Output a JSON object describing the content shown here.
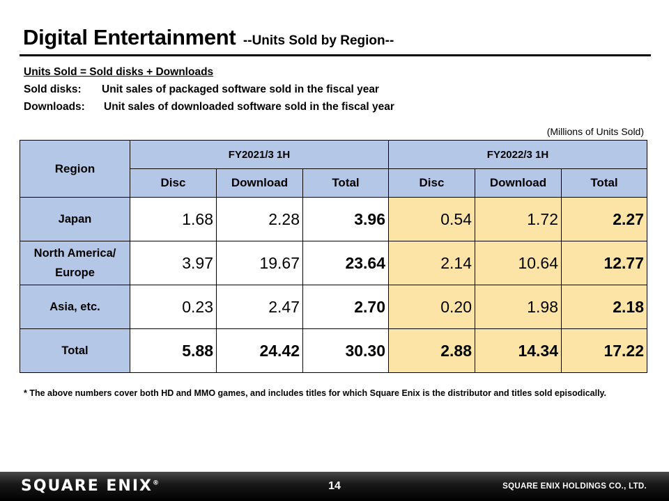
{
  "header": {
    "title": "Digital Entertainment",
    "subtitle": "--Units Sold by Region--"
  },
  "definitions": {
    "formula": "Units Sold = Sold disks + Downloads",
    "disks_key": "Sold disks:",
    "disks_desc": "Unit sales of packaged software sold in the fiscal year",
    "downloads_key": "Downloads:",
    "downloads_desc": "Unit sales of downloaded software sold in the fiscal year"
  },
  "units_note": "(Millions of Units Sold)",
  "table": {
    "region_header": "Region",
    "periods": [
      "FY2021/3 1H",
      "FY2022/3 1H"
    ],
    "subheaders": [
      "Disc",
      "Download",
      "Total",
      "Disc",
      "Download",
      "Total"
    ],
    "rows": [
      {
        "region": "Japan",
        "values": [
          "1.68",
          "2.28",
          "3.96",
          "0.54",
          "1.72",
          "2.27"
        ]
      },
      {
        "region": "North America/ Europe",
        "values": [
          "3.97",
          "19.67",
          "23.64",
          "2.14",
          "10.64",
          "12.77"
        ]
      },
      {
        "region": "Asia, etc.",
        "values": [
          "0.23",
          "2.47",
          "2.70",
          "0.20",
          "1.98",
          "2.18"
        ]
      },
      {
        "region": "Total",
        "values": [
          "5.88",
          "24.42",
          "30.30",
          "2.88",
          "14.34",
          "17.22"
        ]
      }
    ]
  },
  "footnote": "*  The above numbers cover both HD and MMO games, and includes titles for which Square Enix is the distributor and titles sold episodically.",
  "footer": {
    "logo": "SQUARE ENIX",
    "logo_mark": "®",
    "page_number": "14",
    "company": "SQUARE ENIX HOLDINGS CO., LTD."
  },
  "colors": {
    "header_blue": "#b4c7e7",
    "highlight_yellow": "#fce4a6"
  }
}
